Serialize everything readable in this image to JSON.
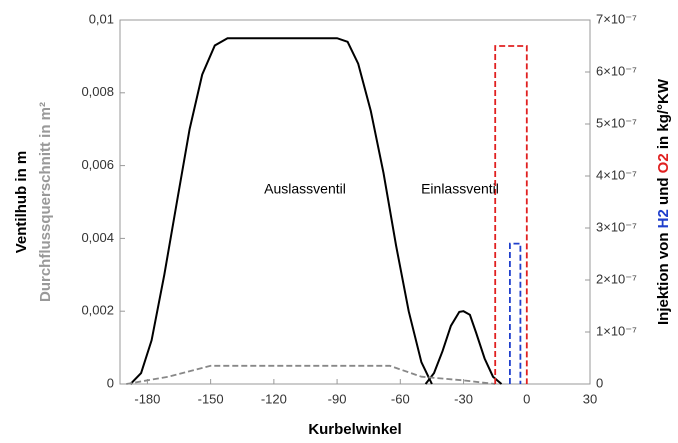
{
  "chart_data": {
    "type": "line",
    "xlabel": "Kurbelwinkel",
    "ylabel": "Ventilhub in m",
    "ylabel2": "Durchflussquerschnitt in m²",
    "y2label": [
      "Injektion von ",
      "H2",
      " und ",
      "O2",
      " in kg/°KW"
    ],
    "y2label_colors": [
      "#000000",
      "#1f3fcc",
      "#000000",
      "#e02020",
      "#000000"
    ],
    "annotations": [
      "Auslassventil",
      "Einlassventil"
    ],
    "xlim": [
      -193,
      30
    ],
    "xticks": [
      -180,
      -150,
      -120,
      -90,
      -60,
      -30,
      0,
      30
    ],
    "ylim": [
      0,
      0.01
    ],
    "yticks": [
      0,
      {
        "value": 0.002,
        "label": "0,002"
      },
      {
        "value": 0.004,
        "label": "0,004"
      },
      {
        "value": 0.006,
        "label": "0,006"
      },
      {
        "value": 0.008,
        "label": "0,008"
      },
      {
        "value": 0.01,
        "label": "0,01"
      }
    ],
    "y2lim": [
      0,
      7e-07
    ],
    "y2ticks": [
      0,
      {
        "value": 1e-07,
        "label": "1×10⁻⁷"
      },
      {
        "value": 2e-07,
        "label": "2×10⁻⁷"
      },
      {
        "value": 3e-07,
        "label": "3×10⁻⁷"
      },
      {
        "value": 4e-07,
        "label": "4×10⁻⁷"
      },
      {
        "value": 5e-07,
        "label": "5×10⁻⁷"
      },
      {
        "value": 6e-07,
        "label": "6×10⁻⁷"
      },
      {
        "value": 7e-07,
        "label": "7×10⁻⁷"
      }
    ],
    "series": [
      {
        "color": "#000000",
        "dash": false,
        "axis": "y",
        "x": [
          -188,
          -183,
          -178,
          -172,
          -166,
          -160,
          -154,
          -148,
          -142,
          -90,
          -85,
          -80,
          -74,
          -68,
          -62,
          -56,
          -50,
          -45
        ],
        "values": [
          0,
          0.0003,
          0.0012,
          0.003,
          0.005,
          0.007,
          0.0085,
          0.0093,
          0.0095,
          0.0095,
          0.0094,
          0.0088,
          0.0075,
          0.0058,
          0.0038,
          0.002,
          0.0006,
          0
        ]
      },
      {
        "color": "#000000",
        "dash": false,
        "axis": "y",
        "x": [
          -48,
          -44,
          -40,
          -36,
          -32,
          -30,
          -27,
          -24,
          -20,
          -16,
          -12
        ],
        "values": [
          0,
          0.0003,
          0.0009,
          0.0016,
          0.00198,
          0.002,
          0.0019,
          0.0014,
          0.0007,
          0.0002,
          0
        ]
      },
      {
        "color": "#888888",
        "dash": true,
        "axis": "y",
        "x": [
          -190,
          -170,
          -150,
          -65,
          -50,
          -30,
          -15
        ],
        "values": [
          0,
          0.0002,
          0.0005,
          0.0005,
          0.0002,
          0.0001,
          0
        ]
      },
      {
        "color": "#e02020",
        "dash": true,
        "axis": "y2",
        "x": [
          -15,
          -15,
          0,
          0
        ],
        "values": [
          0,
          6.5e-07,
          6.5e-07,
          0
        ]
      },
      {
        "color": "#1f3fcc",
        "dash": true,
        "axis": "y2",
        "x": [
          -8,
          -8,
          -3,
          -3
        ],
        "values": [
          0,
          2.7e-07,
          2.7e-07,
          0
        ]
      }
    ]
  }
}
